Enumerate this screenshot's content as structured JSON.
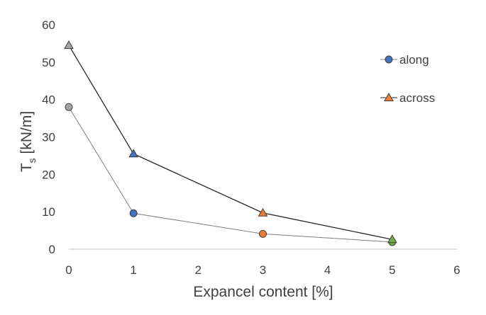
{
  "chart_data": {
    "type": "scatter",
    "xlabel": "Expancel content [%]",
    "ylabel": {
      "main": "T",
      "sub": "s",
      "unit": " [kN/m]"
    },
    "xlim": [
      0,
      6
    ],
    "ylim": [
      0,
      60
    ],
    "x_ticks": [
      "0",
      "1",
      "2",
      "3",
      "4",
      "5",
      "6"
    ],
    "y_ticks": [
      "0",
      "10",
      "20",
      "30",
      "40",
      "50",
      "60"
    ],
    "grid": false,
    "legend_position": "right",
    "series": [
      {
        "name": "along",
        "marker": "circle",
        "line_color": "#7f7f7f",
        "legend_color": "#4472c4",
        "points": [
          {
            "x": 0,
            "y": 38,
            "color": "#a5a5a5"
          },
          {
            "x": 1,
            "y": 9.6,
            "color": "#4472c4"
          },
          {
            "x": 3,
            "y": 4.1,
            "color": "#ed7d31"
          },
          {
            "x": 5,
            "y": 1.9,
            "color": "#70ad47"
          }
        ]
      },
      {
        "name": "across",
        "marker": "triangle",
        "line_color": "#262626",
        "legend_color": "#ed7d31",
        "points": [
          {
            "x": 0,
            "y": 54.5,
            "color": "#a5a5a5"
          },
          {
            "x": 1,
            "y": 25.5,
            "color": "#4472c4"
          },
          {
            "x": 3,
            "y": 9.7,
            "color": "#ed7d31"
          },
          {
            "x": 5,
            "y": 2.6,
            "color": "#70ad47"
          }
        ]
      }
    ]
  }
}
